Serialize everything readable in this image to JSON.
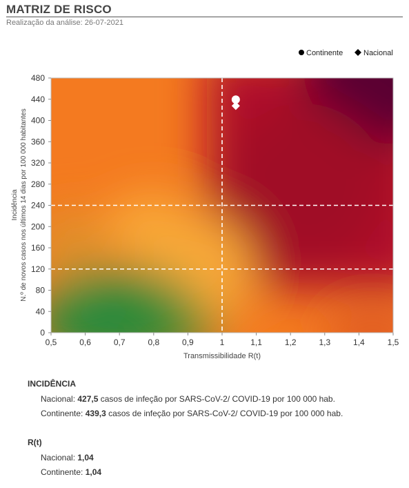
{
  "header": {
    "title": "MATRIZ DE RISCO",
    "subtitle": "Realização da análise: 26-07-2021"
  },
  "chart_data": {
    "type": "scatter",
    "legend_position": "top-right",
    "series": [
      {
        "name": "Continente",
        "marker": "circle",
        "points": [
          {
            "x": 1.04,
            "y": 439.3
          }
        ]
      },
      {
        "name": "Nacional",
        "marker": "diamond",
        "points": [
          {
            "x": 1.04,
            "y": 427.5
          }
        ]
      }
    ],
    "xlabel": "Transmissibilidade R(t)",
    "ylabel_line1": "Incidência",
    "ylabel_line2": "N.º de novos casos nos últimos 14 dias por 100 000 habitantes",
    "xlim": [
      0.5,
      1.5
    ],
    "ylim": [
      0,
      480
    ],
    "x_ticks": [
      "0,5",
      "0,6",
      "0,7",
      "0,8",
      "0,9",
      "1",
      "1,1",
      "1,2",
      "1,3",
      "1,4",
      "1,5"
    ],
    "y_ticks": [
      "0",
      "40",
      "80",
      "120",
      "160",
      "200",
      "240",
      "280",
      "320",
      "360",
      "400",
      "440",
      "480"
    ],
    "x_tick_values": [
      0.5,
      0.6,
      0.7,
      0.8,
      0.9,
      1.0,
      1.1,
      1.2,
      1.3,
      1.4,
      1.5
    ],
    "y_tick_values": [
      0,
      40,
      80,
      120,
      160,
      200,
      240,
      280,
      320,
      360,
      400,
      440,
      480
    ],
    "threshold_lines": {
      "x": [
        1.0
      ],
      "y": [
        120,
        240
      ]
    },
    "background_colors": {
      "green": "#2a8a3a",
      "yellow": "#f8a838",
      "orange": "#f47a20",
      "red": "#b0102a",
      "dark": "#5a0030"
    }
  },
  "incidencia": {
    "heading": "INCIDÊNCIA",
    "nacional_label": "Nacional: ",
    "nacional_value": "427,5",
    "nacional_text": " casos de infeção por SARS-CoV-2/ COVID-19 por 100 000 hab.",
    "continente_label": "Continente: ",
    "continente_value": "439,3",
    "continente_text": " casos de infeção por SARS-CoV-2/ COVID-19 por 100 000 hab."
  },
  "rt": {
    "heading": "R(t)",
    "nacional_label": "Nacional: ",
    "nacional_value": "1,04",
    "continente_label": "Continente: ",
    "continente_value": "1,04"
  }
}
